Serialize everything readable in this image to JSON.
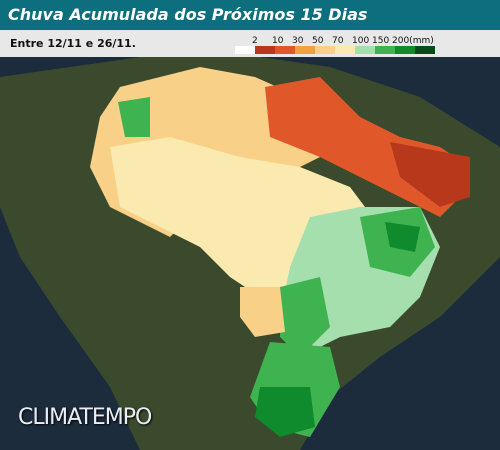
{
  "header": {
    "title": "Chuva Acumulada dos Próximos 15 Dias",
    "period": "Entre 12/11 e 26/11."
  },
  "legend": {
    "labels": [
      "2",
      "10",
      "30",
      "50",
      "70",
      "100",
      "150",
      "200(mm)"
    ],
    "colors": [
      "#ffffff",
      "#b8381c",
      "#e0582a",
      "#f3a040",
      "#f8d088",
      "#fbeab0",
      "#a6dfae",
      "#3fb34f",
      "#0f8a2c",
      "#064c1a"
    ]
  },
  "watermark": "CLIMATEMPO"
}
